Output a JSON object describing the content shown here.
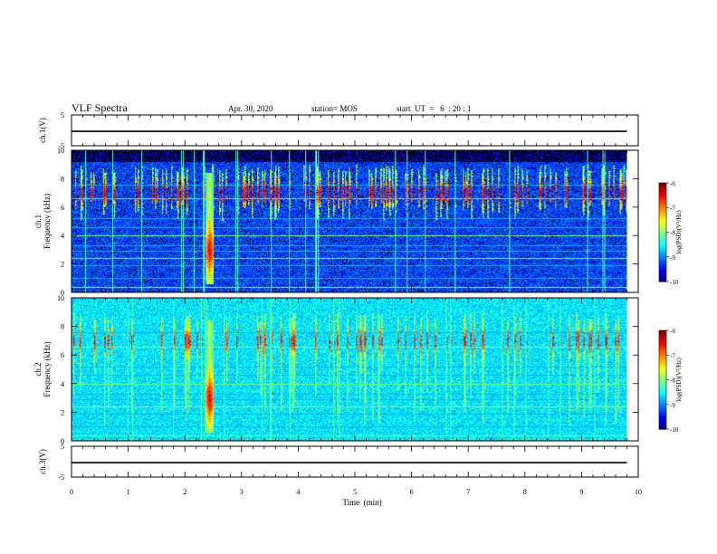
{
  "header": {
    "title": "VLF Spectra",
    "date": "Apr. 30, 2020",
    "station": "station= MOS",
    "start": "start  UT  =   6  : 20 : 1"
  },
  "chart_data": [
    {
      "type": "line",
      "name": "ch1-waveform",
      "ylabel": "ch.1(V)",
      "ylim": [
        -5,
        5
      ],
      "yticks": [
        "5",
        "-5"
      ],
      "xlim": [
        0,
        10
      ],
      "x": [
        0,
        9.8
      ],
      "y": [
        -0.3,
        -0.3
      ]
    },
    {
      "type": "heatmap",
      "name": "ch1-spectrogram",
      "ylabel": "ch.1\nFrequency  (kHz)",
      "ylim": [
        0,
        10
      ],
      "yticks": [
        "0",
        "2",
        "4",
        "6",
        "8",
        "10"
      ],
      "xlim": [
        0,
        10
      ],
      "data_xmax": 9.8,
      "colorbar": {
        "label": "log(PSD)(V²/Hz)",
        "range": [
          -10,
          -6
        ],
        "ticks": [
          "-6",
          "-7",
          "-8",
          "-9",
          "-10"
        ]
      },
      "burst": {
        "t": 2.43,
        "fmin": 0.6,
        "fmax": 8.4
      }
    },
    {
      "type": "heatmap",
      "name": "ch2-spectrogram",
      "ylabel": "ch.2\nFrequency  (kHz)",
      "ylim": [
        0,
        10
      ],
      "yticks": [
        "0",
        "2",
        "4",
        "6",
        "8",
        "10"
      ],
      "xlim": [
        0,
        10
      ],
      "data_xmax": 9.8,
      "colorbar": {
        "label": "log(PSD)(V²/Hz)",
        "range": [
          -10,
          -6
        ],
        "ticks": [
          "-6",
          "-7",
          "-8",
          "-9",
          "-10"
        ]
      },
      "burst": {
        "t": 2.43,
        "fmin": 0.6,
        "fmax": 8.4
      }
    },
    {
      "type": "line",
      "name": "ch3-waveform",
      "ylabel": "ch.3(V)",
      "ylim": [
        -5,
        5
      ],
      "yticks": [
        "5",
        "-5"
      ],
      "xlim": [
        0,
        10
      ],
      "x": [
        0,
        9.8
      ],
      "y": [
        -0.3,
        -0.3
      ]
    }
  ],
  "x_axis": {
    "label": "Time  (min)",
    "ticks": [
      "0",
      "1",
      "2",
      "3",
      "4",
      "5",
      "6",
      "7",
      "8",
      "9",
      "10"
    ]
  }
}
